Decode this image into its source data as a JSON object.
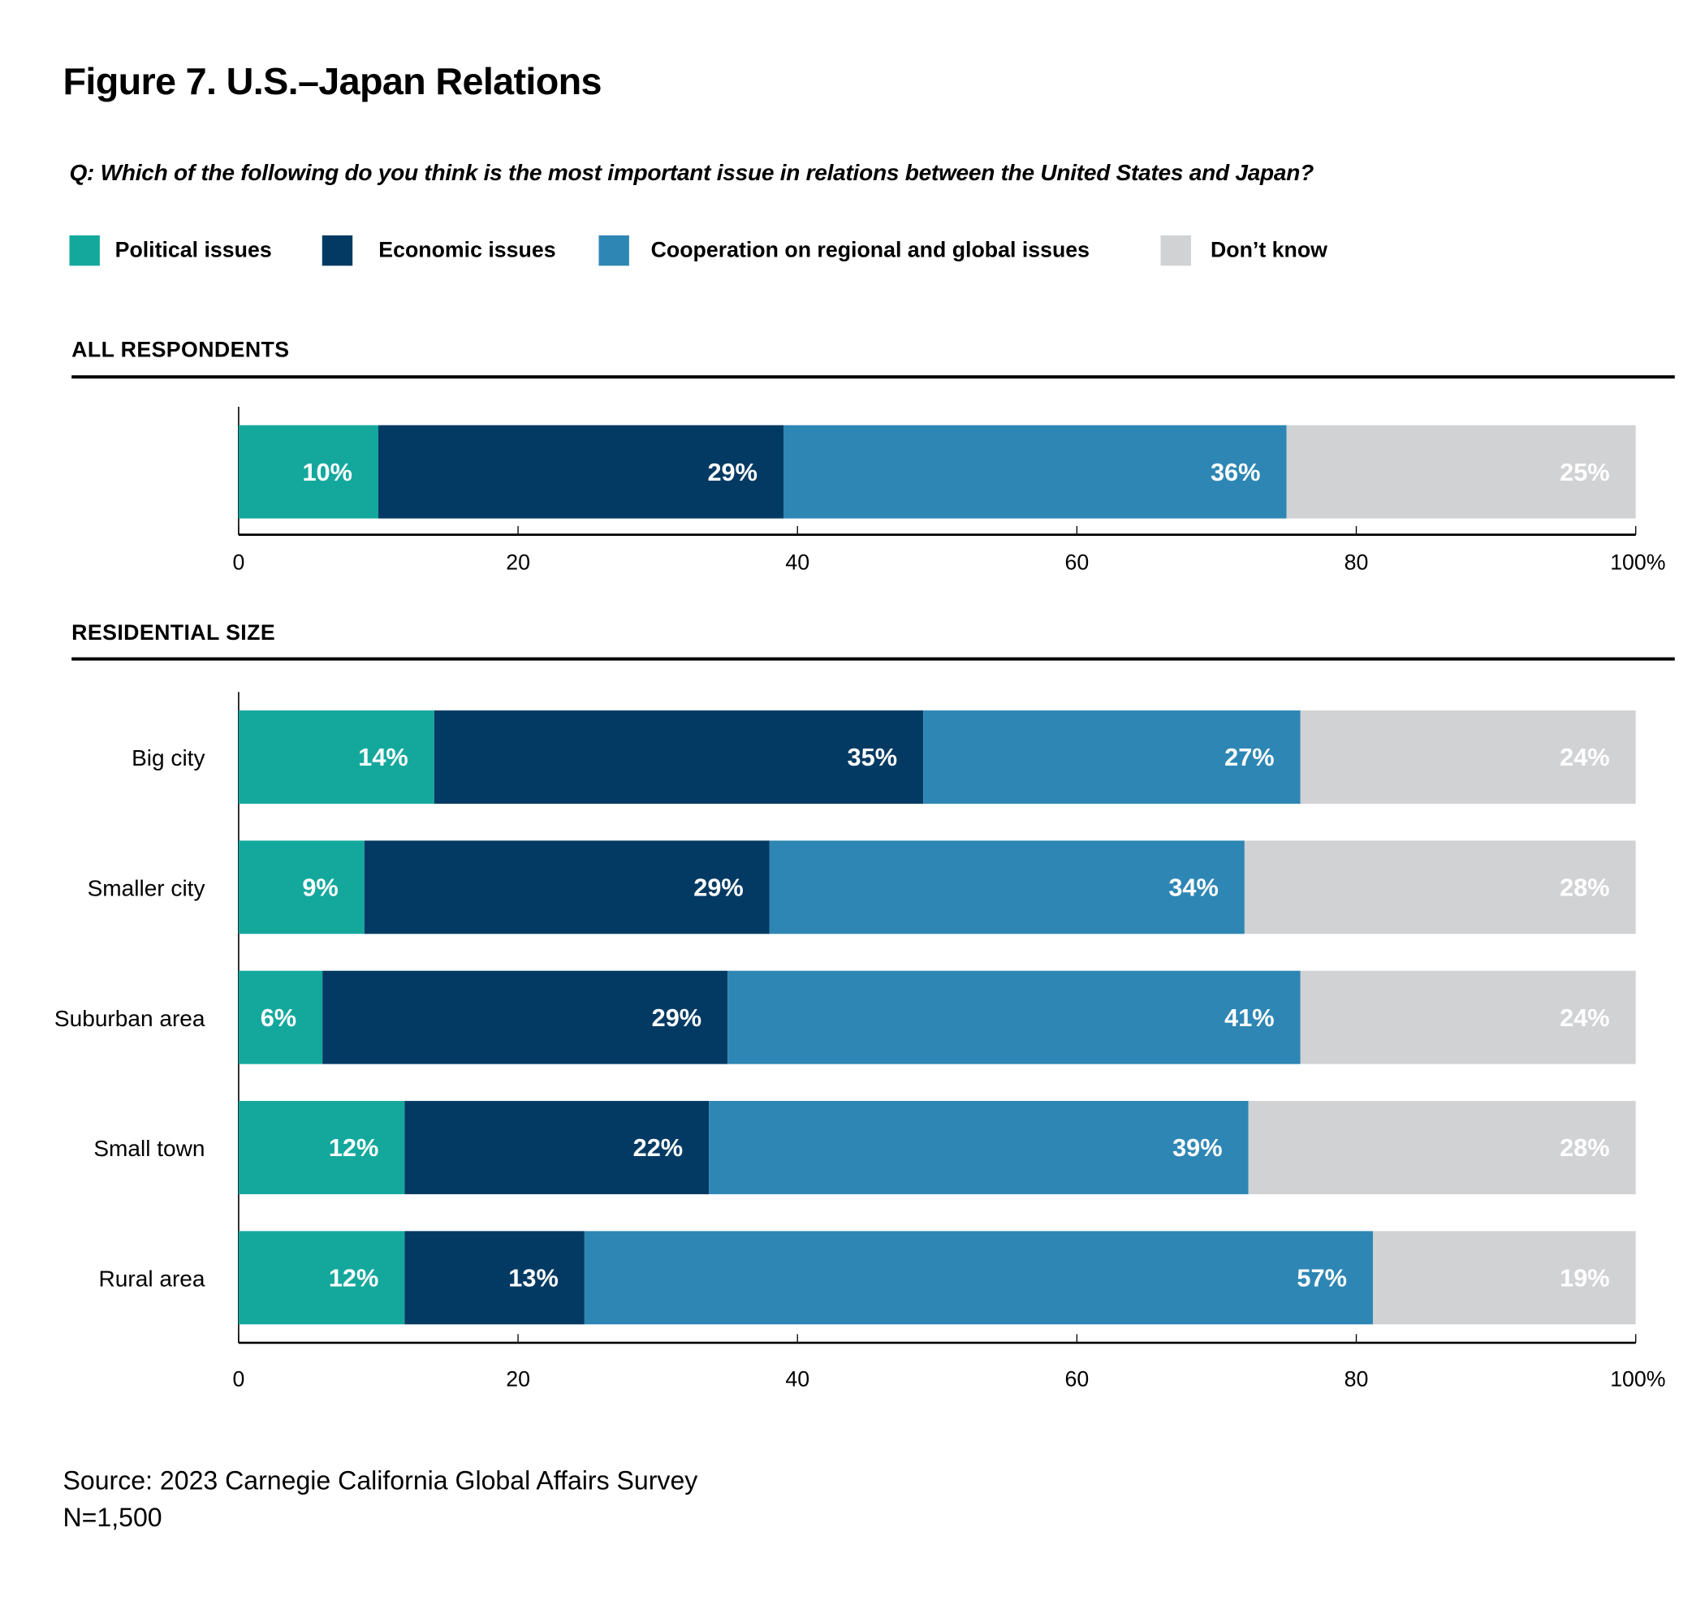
{
  "title": "Figure 7. U.S.–Japan Relations",
  "question": "Q: Which of the following do you think is the most important issue in relations between the United States and Japan?",
  "colors": {
    "political": "#14a89d",
    "economic": "#033a63",
    "cooperation": "#2e86b4",
    "dont_know": "#d1d2d4"
  },
  "legend": [
    {
      "label": "Political issues",
      "color": "#14a89d"
    },
    {
      "label": "Economic issues",
      "color": "#033a63"
    },
    {
      "label": "Cooperation on regional and global issues",
      "color": "#2e86b4"
    },
    {
      "label": "Don’t know",
      "color": "#d1d2d4"
    }
  ],
  "chart_data": [
    {
      "type": "bar",
      "orientation": "horizontal",
      "stacked": true,
      "title": "ALL RESPONDENTS",
      "categories": [
        ""
      ],
      "series": [
        {
          "name": "Political issues",
          "values": [
            10
          ]
        },
        {
          "name": "Economic issues",
          "values": [
            29
          ]
        },
        {
          "name": "Cooperation on regional and global issues",
          "values": [
            36
          ]
        },
        {
          "name": "Don’t know",
          "values": [
            25
          ]
        }
      ],
      "xlim": [
        0,
        100
      ],
      "xticks": [
        "0",
        "20",
        "40",
        "60",
        "80",
        "100%"
      ],
      "grid": false
    },
    {
      "type": "bar",
      "orientation": "horizontal",
      "stacked": true,
      "title": "RESIDENTIAL SIZE",
      "categories": [
        "Big city",
        "Smaller city",
        "Suburban area",
        "Small town",
        "Rural area"
      ],
      "series": [
        {
          "name": "Political issues",
          "values": [
            14,
            9,
            6,
            12,
            12
          ]
        },
        {
          "name": "Economic issues",
          "values": [
            35,
            29,
            29,
            22,
            13
          ]
        },
        {
          "name": "Cooperation on regional and global issues",
          "values": [
            27,
            34,
            41,
            39,
            57
          ]
        },
        {
          "name": "Don’t know",
          "values": [
            24,
            28,
            24,
            28,
            19
          ]
        }
      ],
      "xlim": [
        0,
        100
      ],
      "xticks": [
        "0",
        "20",
        "40",
        "60",
        "80",
        "100%"
      ],
      "grid": false
    }
  ],
  "source": "Source: 2023 Carnegie California Global Affairs Survey",
  "n": "N=1,500"
}
